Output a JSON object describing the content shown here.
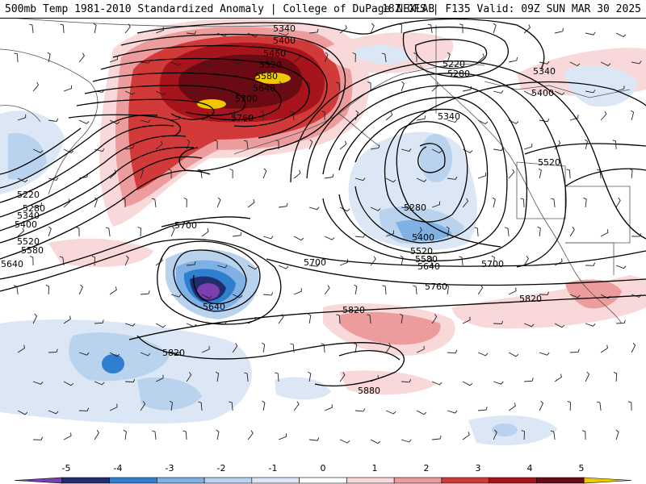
{
  "header": {
    "left_title": "500mb Temp 1981-2010 Standardized Anomaly | College of DuPage NEXLAB",
    "right_title": "18Z GFS | F135 Valid: 09Z SUN MAR 30 2025"
  },
  "colorbar": {
    "tick_labels": [
      "-5",
      "-4",
      "-3",
      "-2",
      "-1",
      "0",
      "1",
      "2",
      "3",
      "4",
      "5"
    ],
    "colors": [
      "#7b3fb0",
      "#232d6e",
      "#2f7fd0",
      "#7fb1e4",
      "#b9d3ee",
      "#dbe7f5",
      "#ffffff",
      "#f8d8d8",
      "#ec9c9c",
      "#d23a3a",
      "#a8141c",
      "#6a0a12",
      "#f0c800"
    ]
  },
  "map": {
    "land_outline_color": "#555555",
    "contour_color": "#000000",
    "contour_labels": [
      "5340",
      "5400",
      "5460",
      "5520",
      "5580",
      "5640",
      "5700",
      "5760",
      "5220",
      "5280",
      "5340",
      "5400",
      "5340",
      "5280",
      "5400",
      "5520",
      "5580",
      "5640",
      "5700",
      "5760",
      "5220",
      "5280",
      "5340",
      "5400",
      "5520",
      "5580",
      "5640",
      "5700",
      "5640",
      "5820",
      "5820",
      "5880",
      "5700",
      "5520"
    ]
  }
}
